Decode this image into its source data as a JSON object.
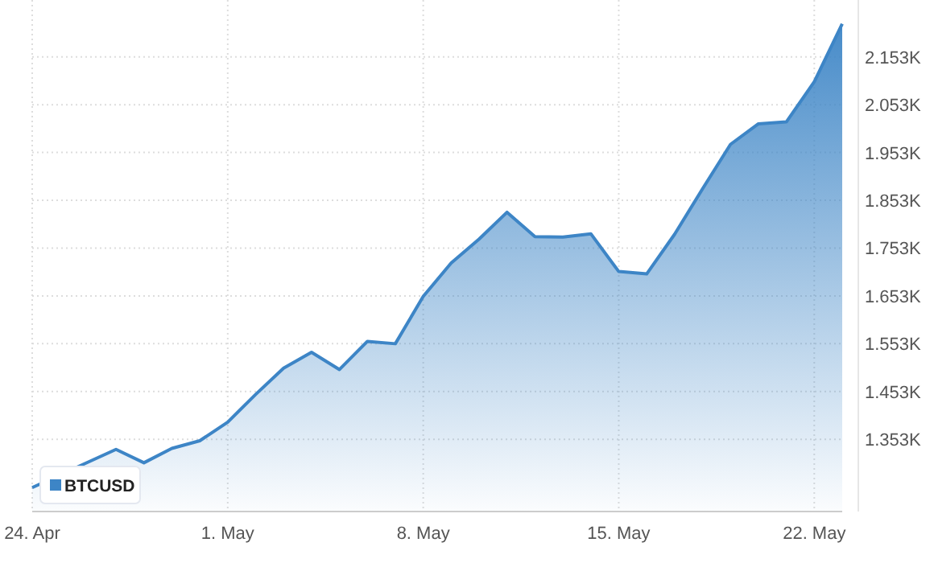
{
  "chart_data": {
    "type": "area",
    "x": [
      "--04-24",
      "--04-25",
      "--04-26",
      "--04-27",
      "--04-28",
      "--04-29",
      "--04-30",
      "--05-01",
      "--05-02",
      "--05-03",
      "--05-04",
      "--05-05",
      "--05-06",
      "--05-07",
      "--05-08",
      "--05-09",
      "--05-10",
      "--05-11",
      "--05-12",
      "--05-13",
      "--05-14",
      "--05-15",
      "--05-16",
      "--05-17",
      "--05-18",
      "--05-19",
      "--05-20",
      "--05-21",
      "--05-22",
      "--05-23"
    ],
    "series": [
      {
        "name": "BTCUSD",
        "color": "#3d85c6",
        "values": [
          1.252,
          null,
          null,
          1.332,
          1.304,
          1.334,
          1.35,
          1.389,
          1.447,
          1.502,
          1.535,
          1.499,
          1.558,
          1.553,
          1.652,
          1.722,
          1.772,
          1.828,
          1.777,
          1.776,
          1.783,
          1.704,
          1.699,
          1.782,
          1.877,
          1.97,
          2.013,
          2.017,
          2.101,
          2.222
        ]
      }
    ],
    "xlim": [
      "--04-24",
      "--05-23"
    ],
    "xticks": [
      {
        "value": "--04-24",
        "label": "24. Apr"
      },
      {
        "value": "--05-01",
        "label": "1. May"
      },
      {
        "value": "--05-08",
        "label": "8. May"
      },
      {
        "value": "--05-15",
        "label": "15. May"
      },
      {
        "value": "--05-22",
        "label": "22. May"
      }
    ],
    "ylim": [
      1.202,
      2.272
    ],
    "yticks": [
      {
        "value": 1.353,
        "label": "1.353K"
      },
      {
        "value": 1.453,
        "label": "1.453K"
      },
      {
        "value": 1.553,
        "label": "1.553K"
      },
      {
        "value": 1.653,
        "label": "1.653K"
      },
      {
        "value": 1.753,
        "label": "1.753K"
      },
      {
        "value": 1.853,
        "label": "1.853K"
      },
      {
        "value": 1.953,
        "label": "1.953K"
      },
      {
        "value": 2.053,
        "label": "2.053K"
      },
      {
        "value": 2.153,
        "label": "2.153K"
      }
    ],
    "grid": true,
    "legend": "bottom left"
  }
}
